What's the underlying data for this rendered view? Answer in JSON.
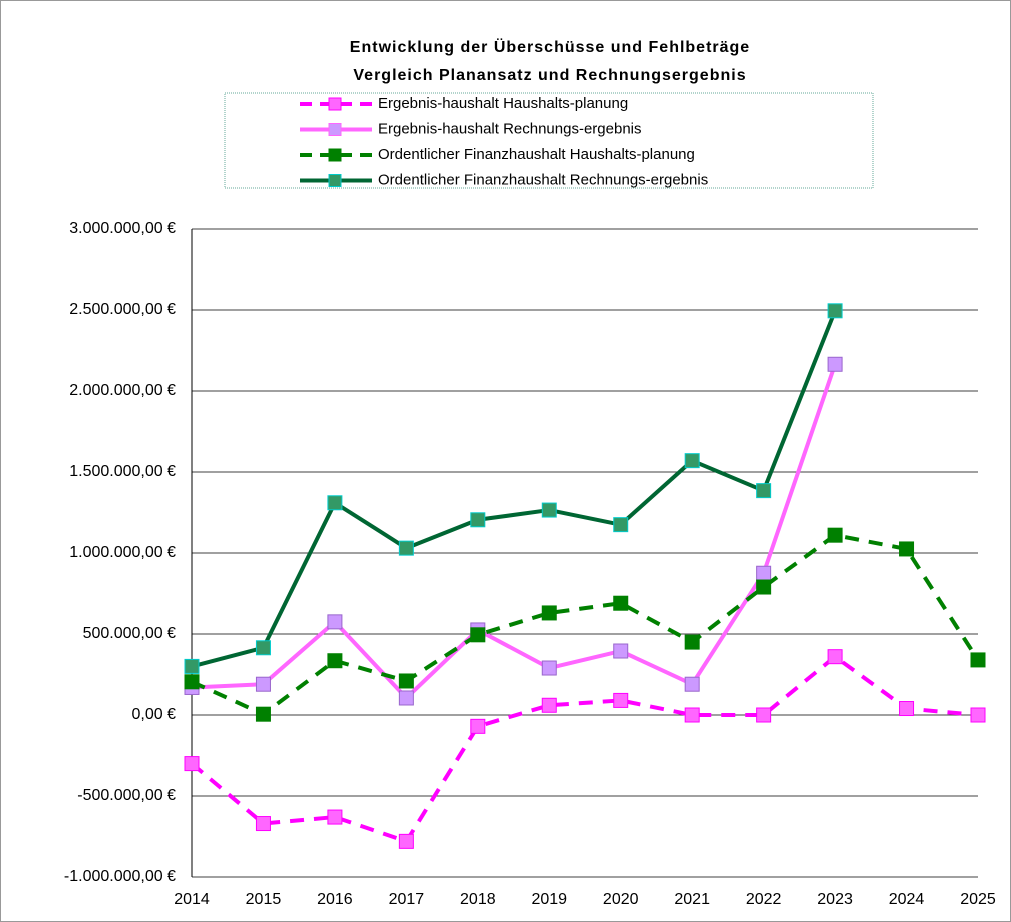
{
  "chart_data": {
    "type": "line",
    "title": "Entwicklung der Überschüsse und Fehlbeträge",
    "subtitle": "Vergleich Planansatz und Rechnungsergebnis",
    "categories": [
      "2014",
      "2015",
      "2016",
      "2017",
      "2018",
      "2019",
      "2020",
      "2021",
      "2022",
      "2023",
      "2024",
      "2025"
    ],
    "series": [
      {
        "name": "Ergebnis-haushalt Haushalts-planung",
        "color": "#ff00ff",
        "marker_color": "#ff66ff",
        "dashed": true,
        "values": [
          -300000,
          -670000,
          -630000,
          -780000,
          -70000,
          60000,
          90000,
          0,
          0,
          360000,
          40000,
          0
        ]
      },
      {
        "name": "Ergebnis-haushalt Rechnungs-ergebnis",
        "color": "#ff66ff",
        "marker_color": "#cc99ff",
        "dashed": false,
        "values": [
          170000,
          190000,
          575000,
          105000,
          525000,
          290000,
          395000,
          190000,
          875000,
          2165000,
          null,
          null
        ]
      },
      {
        "name": "Ordentlicher Finanzhaushalt Haushalts-planung",
        "color": "#008000",
        "marker_color": "#008000",
        "dashed": true,
        "values": [
          205000,
          5000,
          335000,
          210000,
          495000,
          630000,
          690000,
          450000,
          790000,
          1110000,
          1025000,
          340000
        ]
      },
      {
        "name": "Ordentlicher Finanzhaushalt Rechnungs-ergebnis",
        "color": "#006633",
        "marker_color": "#339966",
        "dashed": false,
        "values": [
          300000,
          415000,
          1310000,
          1030000,
          1205000,
          1265000,
          1175000,
          1570000,
          1385000,
          2495000,
          null,
          null
        ]
      }
    ],
    "ylim": [
      -1000000,
      3000000
    ],
    "yticks": [
      {
        "value": -1000000,
        "label": "-1.000.000,00 €"
      },
      {
        "value": -500000,
        "label": "-500.000,00 €"
      },
      {
        "value": 0,
        "label": "0,00 €"
      },
      {
        "value": 500000,
        "label": "500.000,00 €"
      },
      {
        "value": 1000000,
        "label": "1.000.000,00 €"
      },
      {
        "value": 1500000,
        "label": "1.500.000,00 €"
      },
      {
        "value": 2000000,
        "label": "2.000.000,00 €"
      },
      {
        "value": 2500000,
        "label": "2.500.000,00 €"
      },
      {
        "value": 3000000,
        "label": "3.000.000,00 €"
      }
    ],
    "grid": true,
    "legend": "top"
  }
}
